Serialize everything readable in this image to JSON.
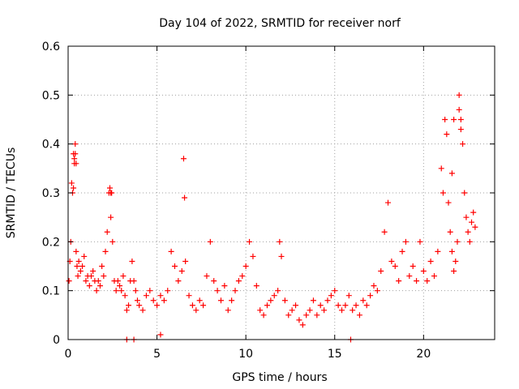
{
  "chart_data": {
    "type": "scatter",
    "title": "Day 104 of 2022, SRMTID for receiver norf",
    "xlabel": "GPS time / hours",
    "ylabel": "SRMTID / TECUs",
    "xlim": [
      0,
      24
    ],
    "ylim": [
      0,
      0.6
    ],
    "xticks": [
      0,
      5,
      10,
      15,
      20
    ],
    "xtick_labels": [
      "0",
      "5",
      "10",
      "15",
      "20"
    ],
    "yticks": [
      0,
      0.1,
      0.2,
      0.3,
      0.4,
      0.5,
      0.6
    ],
    "ytick_labels": [
      "0",
      "0.1",
      "0.2",
      "0.3",
      "0.4",
      "0.5",
      "0.6"
    ],
    "grid": true,
    "marker": "plus",
    "color": "#ff0000",
    "series": [
      {
        "name": "norf",
        "x": [
          0.05,
          0.1,
          0.15,
          0.2,
          0.25,
          0.3,
          0.35,
          0.4,
          0.45,
          0.5,
          0.55,
          0.6,
          0.7,
          0.8,
          0.9,
          1.0,
          1.1,
          1.2,
          1.3,
          1.4,
          1.5,
          1.6,
          1.7,
          1.8,
          1.9,
          2.0,
          2.1,
          2.2,
          2.3,
          2.4,
          2.5,
          2.6,
          2.7,
          2.8,
          2.9,
          3.0,
          3.1,
          3.2,
          3.3,
          3.4,
          3.5,
          3.6,
          3.7,
          3.8,
          3.9,
          4.0,
          4.2,
          4.4,
          4.6,
          4.8,
          5.0,
          5.2,
          5.4,
          5.6,
          5.8,
          6.0,
          6.2,
          6.4,
          6.6,
          6.8,
          7.0,
          7.2,
          7.4,
          7.6,
          7.8,
          8.0,
          8.2,
          8.4,
          8.6,
          8.8,
          9.0,
          9.2,
          9.4,
          9.6,
          9.8,
          10.0,
          10.2,
          10.4,
          10.6,
          10.8,
          11.0,
          11.2,
          11.4,
          11.6,
          11.8,
          12.0,
          12.2,
          12.4,
          12.6,
          12.8,
          13.0,
          13.2,
          13.4,
          13.6,
          13.8,
          14.0,
          14.2,
          14.4,
          14.6,
          14.8,
          15.0,
          15.2,
          15.4,
          15.6,
          15.8,
          16.0,
          16.2,
          16.4,
          16.6,
          16.8,
          17.0,
          17.2,
          17.4,
          17.6,
          17.8,
          18.0,
          18.2,
          18.4,
          18.6,
          18.8,
          19.0,
          19.2,
          19.4,
          19.6,
          19.8,
          20.0,
          20.2,
          20.4,
          20.6,
          20.8,
          21.0,
          21.1,
          21.2,
          21.3,
          21.4,
          21.5,
          21.6,
          21.7,
          21.8,
          21.9,
          22.0,
          22.1,
          22.2,
          22.3,
          22.4,
          22.5,
          22.6,
          22.7,
          22.8,
          22.9,
          0.3,
          0.35,
          0.4,
          0.45,
          2.35,
          2.4,
          2.45,
          6.5,
          6.55,
          11.9,
          21.6,
          21.7,
          22.0,
          22.1,
          3.3,
          3.7,
          5.2,
          15.9
        ],
        "y": [
          0.12,
          0.16,
          0.2,
          0.32,
          0.3,
          0.38,
          0.36,
          0.4,
          0.18,
          0.15,
          0.13,
          0.16,
          0.14,
          0.15,
          0.17,
          0.12,
          0.13,
          0.11,
          0.13,
          0.14,
          0.12,
          0.1,
          0.12,
          0.11,
          0.15,
          0.13,
          0.18,
          0.22,
          0.3,
          0.25,
          0.2,
          0.12,
          0.1,
          0.12,
          0.11,
          0.1,
          0.13,
          0.09,
          0.06,
          0.07,
          0.12,
          0.16,
          0.12,
          0.1,
          0.08,
          0.07,
          0.06,
          0.09,
          0.1,
          0.08,
          0.07,
          0.09,
          0.08,
          0.1,
          0.18,
          0.15,
          0.12,
          0.14,
          0.16,
          0.09,
          0.07,
          0.06,
          0.08,
          0.07,
          0.13,
          0.2,
          0.12,
          0.1,
          0.08,
          0.11,
          0.06,
          0.08,
          0.1,
          0.12,
          0.13,
          0.15,
          0.2,
          0.17,
          0.11,
          0.06,
          0.05,
          0.07,
          0.08,
          0.09,
          0.1,
          0.17,
          0.08,
          0.05,
          0.06,
          0.07,
          0.04,
          0.03,
          0.05,
          0.06,
          0.08,
          0.05,
          0.07,
          0.06,
          0.08,
          0.09,
          0.1,
          0.07,
          0.06,
          0.07,
          0.09,
          0.06,
          0.07,
          0.05,
          0.08,
          0.07,
          0.09,
          0.11,
          0.1,
          0.14,
          0.22,
          0.28,
          0.16,
          0.15,
          0.12,
          0.18,
          0.2,
          0.13,
          0.15,
          0.12,
          0.2,
          0.14,
          0.12,
          0.16,
          0.13,
          0.18,
          0.35,
          0.3,
          0.45,
          0.42,
          0.28,
          0.22,
          0.18,
          0.14,
          0.16,
          0.2,
          0.5,
          0.45,
          0.4,
          0.3,
          0.25,
          0.22,
          0.2,
          0.24,
          0.26,
          0.23,
          0.31,
          0.37,
          0.38,
          0.36,
          0.31,
          0.3,
          0.3,
          0.37,
          0.29,
          0.2,
          0.34,
          0.45,
          0.47,
          0.43,
          0.0,
          0.0,
          0.01,
          0.0
        ]
      }
    ]
  }
}
